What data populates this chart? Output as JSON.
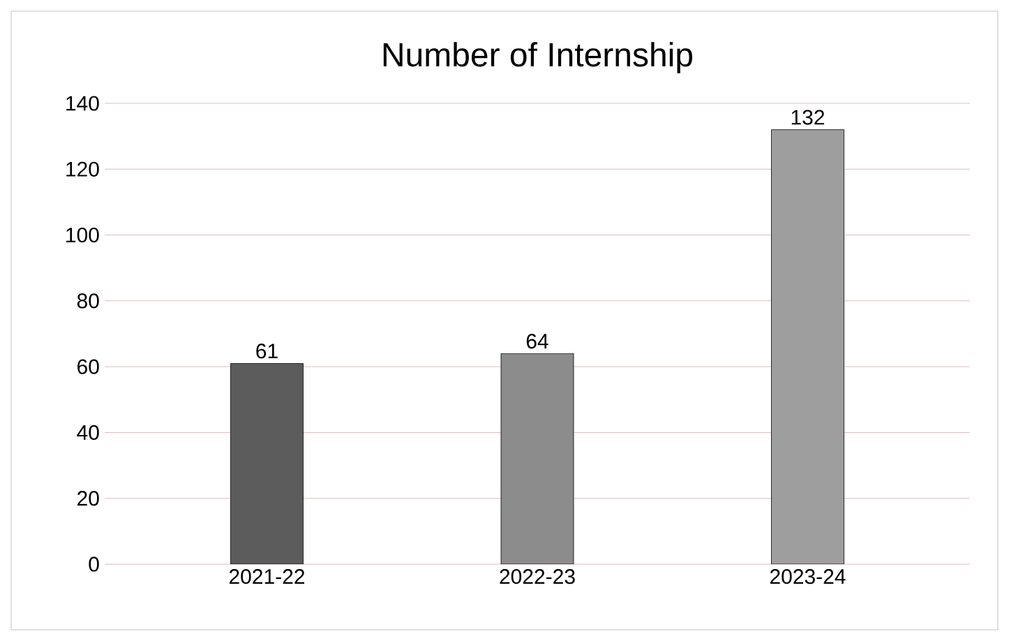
{
  "chart_data": {
    "type": "bar",
    "title": "Number of Internship",
    "categories": [
      "2021-22",
      "2022-23",
      "2023-24"
    ],
    "values": [
      61,
      64,
      132
    ],
    "colors": [
      "#5c5c5c",
      "#8c8c8c",
      "#9e9e9e"
    ],
    "ylim": [
      0,
      140
    ],
    "yticks": [
      0,
      20,
      40,
      60,
      80,
      100,
      120,
      140
    ],
    "grid": "y",
    "data_labels": true
  }
}
